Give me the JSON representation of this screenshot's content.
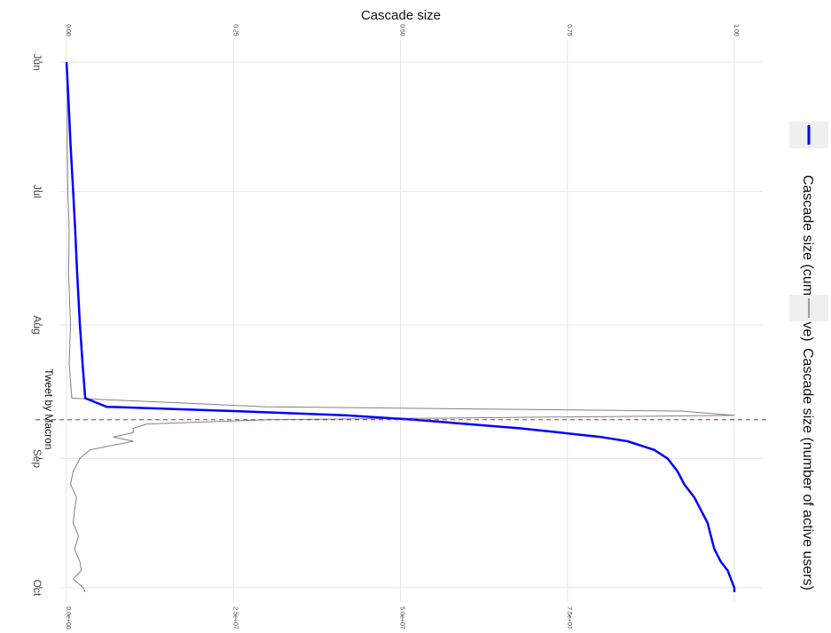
{
  "chart_data": {
    "type": "line",
    "title": "Cascade size",
    "x": [
      "2017-06-01",
      "2017-06-10",
      "2017-06-20",
      "2017-07-01",
      "2017-07-10",
      "2017-07-20",
      "2017-08-01",
      "2017-08-10",
      "2017-08-18",
      "2017-08-20",
      "2017-08-21",
      "2017-08-22",
      "2017-08-23",
      "2017-08-24",
      "2017-08-25",
      "2017-08-26",
      "2017-08-27",
      "2017-08-28",
      "2017-08-30",
      "2017-09-01",
      "2017-09-04",
      "2017-09-07",
      "2017-09-10",
      "2017-09-13",
      "2017-09-16",
      "2017-09-19",
      "2017-09-22",
      "2017-09-25",
      "2017-09-27",
      "2017-09-29",
      "2017-10-01",
      "2017-10-02"
    ],
    "top_axis": {
      "ticks": [
        0.0,
        0.25,
        0.5,
        0.75,
        1.0
      ],
      "tick_labels": [
        "0.00",
        "0.25",
        "0.50",
        "0.75",
        "1.00"
      ],
      "range": [
        0,
        1
      ]
    },
    "bottom_axis": {
      "ticks": [
        0,
        25000000,
        50000000,
        75000000
      ],
      "tick_labels": [
        "0.0e+00",
        "2.5e+07",
        "5.0e+07",
        "7.5e+07"
      ]
    },
    "date_axis": {
      "tick_labels": [
        "Jun",
        "Jul",
        "Aug",
        "Sep",
        "Oct"
      ],
      "tick_dates": [
        "2017-06-01",
        "2017-07-01",
        "2017-08-01",
        "2017-09-01",
        "2017-10-01"
      ],
      "range": [
        "2017-05-25",
        "2017-10-05"
      ]
    },
    "series": [
      {
        "name": "Cascade size (cumulative)",
        "color": "#0000ff",
        "axis": "top",
        "values": [
          0.0,
          0.003,
          0.006,
          0.01,
          0.013,
          0.016,
          0.02,
          0.024,
          0.028,
          0.06,
          0.25,
          0.42,
          0.52,
          0.6,
          0.68,
          0.74,
          0.8,
          0.84,
          0.88,
          0.9,
          0.915,
          0.925,
          0.94,
          0.95,
          0.96,
          0.965,
          0.97,
          0.98,
          0.99,
          0.995,
          1.0,
          1.0
        ]
      },
      {
        "name": "Cascade size (number of active users)",
        "color": "#808080",
        "axis": "top",
        "values": [
          0.0,
          0.001,
          0.001,
          0.002,
          0.004,
          0.003,
          0.006,
          0.004,
          0.008,
          0.3,
          0.92,
          1.0,
          0.3,
          0.12,
          0.1,
          0.1,
          0.07,
          0.1,
          0.035,
          0.02,
          0.01,
          0.006,
          0.015,
          0.012,
          0.01,
          0.018,
          0.012,
          0.02,
          0.022,
          0.01,
          0.025,
          0.028
        ]
      }
    ],
    "annotations": [
      {
        "text": "Tweet by Macron",
        "date": "2017-08-23",
        "line_color": "#ff0000",
        "line_style": "dashed"
      }
    ],
    "legend_position": "right",
    "grid": true
  }
}
